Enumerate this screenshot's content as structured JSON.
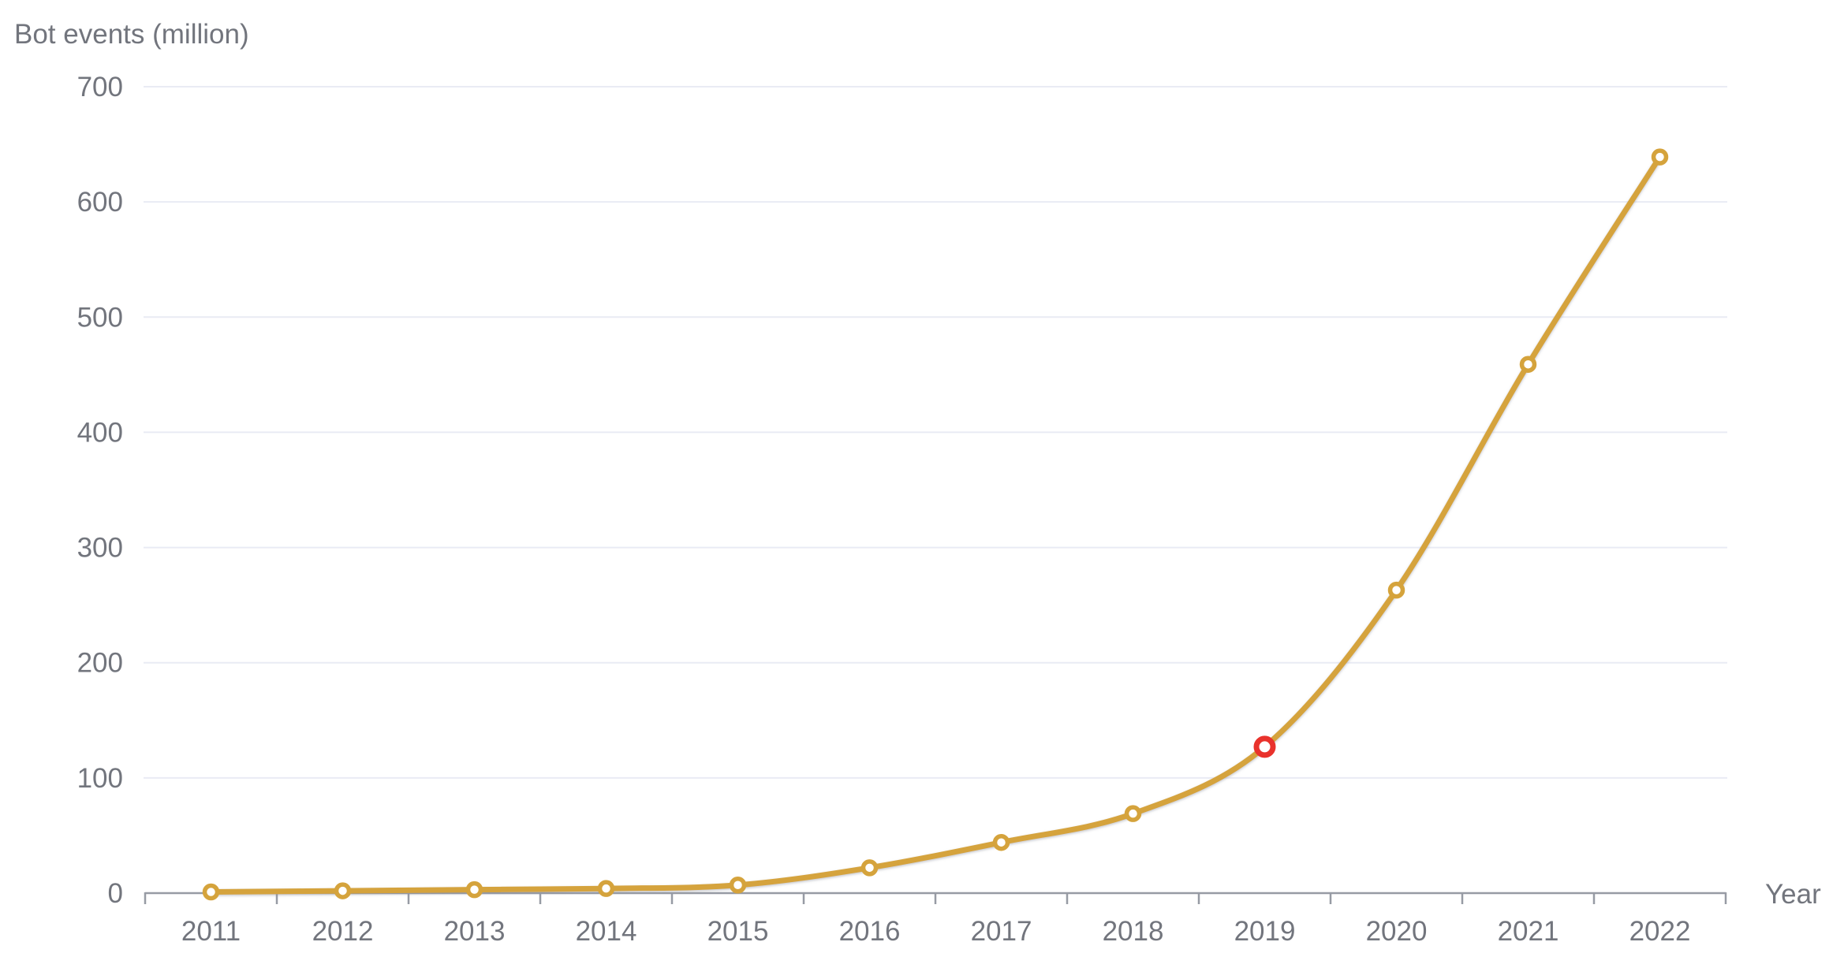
{
  "chart_data": {
    "type": "line",
    "title": "Bot events (million)",
    "xlabel": "Year",
    "ylabel": "Bot events (million)",
    "categories": [
      "2011",
      "2012",
      "2013",
      "2014",
      "2015",
      "2016",
      "2017",
      "2018",
      "2019",
      "2020",
      "2021",
      "2022"
    ],
    "series": [
      {
        "name": "Bot events",
        "values": [
          1,
          2,
          3,
          4,
          7,
          22,
          44,
          69,
          127,
          263,
          459,
          639
        ]
      }
    ],
    "ylim": [
      0,
      700
    ],
    "yticks": [
      0,
      100,
      200,
      300,
      400,
      500,
      600,
      700
    ],
    "grid": "horizontal-only",
    "legend": "none",
    "highlight": {
      "category": "2019",
      "value": 127,
      "marker": "red-ring"
    },
    "colors": {
      "line": "#d5a33c",
      "marker_stroke": "#d5a33c",
      "marker_fill": "#ffffff",
      "highlight": "#e9322c",
      "grid": "#e9ebf4",
      "axis": "#979ba4",
      "label": "#72757d"
    }
  }
}
